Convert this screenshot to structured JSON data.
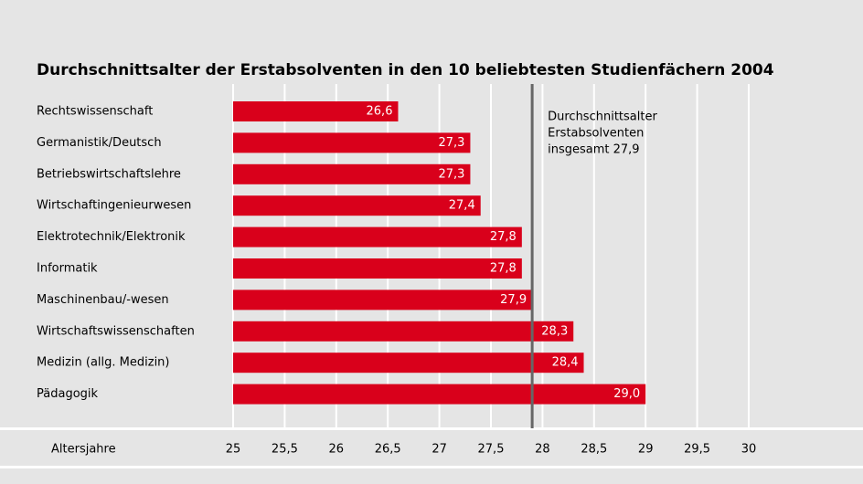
{
  "chart_data": {
    "type": "bar",
    "orientation": "horizontal",
    "title": "Durchschnittsalter der Erstabsolventen in den 10 beliebtesten Studienfächern 2004",
    "categories": [
      "Rechtswissenschaft",
      "Germanistik/Deutsch",
      "Betriebswirtschaftslehre",
      "Wirtschaftingenieurwesen",
      "Elektrotechnik/Elektronik",
      "Informatik",
      "Maschinenbau/-wesen",
      "Wirtschaftswissenschaften",
      "Medizin (allg. Medizin)",
      "Pädagogik"
    ],
    "values": [
      26.6,
      27.3,
      27.3,
      27.4,
      27.8,
      27.8,
      27.9,
      28.3,
      28.4,
      29.0
    ],
    "value_labels": [
      "26,6",
      "27,3",
      "27,3",
      "27,4",
      "27,8",
      "27,8",
      "27,9",
      "28,3",
      "28,4",
      "29,0"
    ],
    "color": "#d9001b",
    "xlabel": "Altersjahre",
    "xlim": [
      25,
      30
    ],
    "xticks": [
      25,
      {
        "value": 25.5,
        "label": "25,5"
      },
      26,
      {
        "value": 26.5,
        "label": "26,5"
      },
      27,
      {
        "value": 27.5,
        "label": "27,5"
      },
      28,
      {
        "value": 28.5,
        "label": "28,5"
      },
      29,
      {
        "value": 29.5,
        "label": "29,5"
      },
      30
    ],
    "grid": true,
    "reference_line": 27.9,
    "annotation": [
      "Durchschnittsalter",
      "Erstabsolventen",
      "insgesamt 27,9"
    ]
  }
}
